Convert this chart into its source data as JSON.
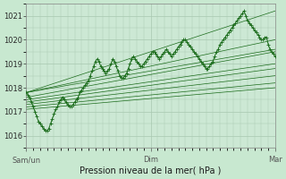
{
  "xlabel": "Pression niveau de la mer( hPa )",
  "background_color": "#c8e8d0",
  "plot_bg_color": "#cce8d4",
  "grid_color": "#a8c8b0",
  "line_color": "#1a6b1a",
  "ylim": [
    1015.5,
    1021.5
  ],
  "yticks": [
    1016,
    1017,
    1018,
    1019,
    1020,
    1021
  ],
  "x_tick_labels": [
    "Sam/un",
    "Dim",
    "Mar"
  ],
  "x_tick_pos": [
    0,
    72,
    144
  ],
  "xlim": [
    0,
    144
  ],
  "n_points": 145,
  "trend_lines": [
    {
      "x0": 0,
      "y0": 1017.8,
      "x1": 144,
      "y1": 1021.2
    },
    {
      "x0": 0,
      "y0": 1017.8,
      "x1": 144,
      "y1": 1020.0
    },
    {
      "x0": 0,
      "y0": 1017.8,
      "x1": 144,
      "y1": 1019.6
    },
    {
      "x0": 0,
      "y0": 1017.6,
      "x1": 144,
      "y1": 1019.5
    },
    {
      "x0": 0,
      "y0": 1017.5,
      "x1": 144,
      "y1": 1019.0
    },
    {
      "x0": 0,
      "y0": 1017.4,
      "x1": 144,
      "y1": 1018.8
    },
    {
      "x0": 0,
      "y0": 1017.3,
      "x1": 144,
      "y1": 1018.5
    },
    {
      "x0": 0,
      "y0": 1017.2,
      "x1": 144,
      "y1": 1018.2
    },
    {
      "x0": 0,
      "y0": 1017.1,
      "x1": 144,
      "y1": 1018.0
    }
  ],
  "zigzag": [
    1017.8,
    1017.7,
    1017.6,
    1017.4,
    1017.2,
    1017.0,
    1016.8,
    1016.6,
    1016.5,
    1016.4,
    1016.3,
    1016.2,
    1016.2,
    1016.3,
    1016.5,
    1016.7,
    1016.9,
    1017.1,
    1017.2,
    1017.4,
    1017.5,
    1017.6,
    1017.5,
    1017.4,
    1017.3,
    1017.2,
    1017.2,
    1017.3,
    1017.4,
    1017.5,
    1017.6,
    1017.8,
    1017.9,
    1018.0,
    1018.1,
    1018.2,
    1018.3,
    1018.5,
    1018.7,
    1018.9,
    1019.1,
    1019.2,
    1019.1,
    1018.9,
    1018.8,
    1018.7,
    1018.6,
    1018.7,
    1018.8,
    1019.0,
    1019.2,
    1019.1,
    1018.9,
    1018.7,
    1018.5,
    1018.4,
    1018.4,
    1018.5,
    1018.6,
    1018.8,
    1019.0,
    1019.2,
    1019.3,
    1019.2,
    1019.1,
    1019.0,
    1018.9,
    1018.9,
    1019.0,
    1019.1,
    1019.2,
    1019.3,
    1019.4,
    1019.5,
    1019.5,
    1019.4,
    1019.3,
    1019.2,
    1019.3,
    1019.4,
    1019.5,
    1019.6,
    1019.5,
    1019.4,
    1019.3,
    1019.4,
    1019.5,
    1019.6,
    1019.7,
    1019.8,
    1019.9,
    1020.0,
    1020.0,
    1019.9,
    1019.8,
    1019.7,
    1019.6,
    1019.5,
    1019.4,
    1019.3,
    1019.2,
    1019.1,
    1019.0,
    1018.9,
    1018.8,
    1018.8,
    1018.9,
    1019.0,
    1019.1,
    1019.3,
    1019.5,
    1019.6,
    1019.8,
    1019.9,
    1020.0,
    1020.1,
    1020.2,
    1020.3,
    1020.4,
    1020.5,
    1020.6,
    1020.7,
    1020.8,
    1020.9,
    1021.0,
    1021.1,
    1021.2,
    1021.0,
    1020.8,
    1020.7,
    1020.6,
    1020.5,
    1020.4,
    1020.3,
    1020.2,
    1020.1,
    1020.0,
    1020.0,
    1020.1,
    1020.1,
    1019.8,
    1019.6,
    1019.5,
    1019.4,
    1019.3
  ]
}
